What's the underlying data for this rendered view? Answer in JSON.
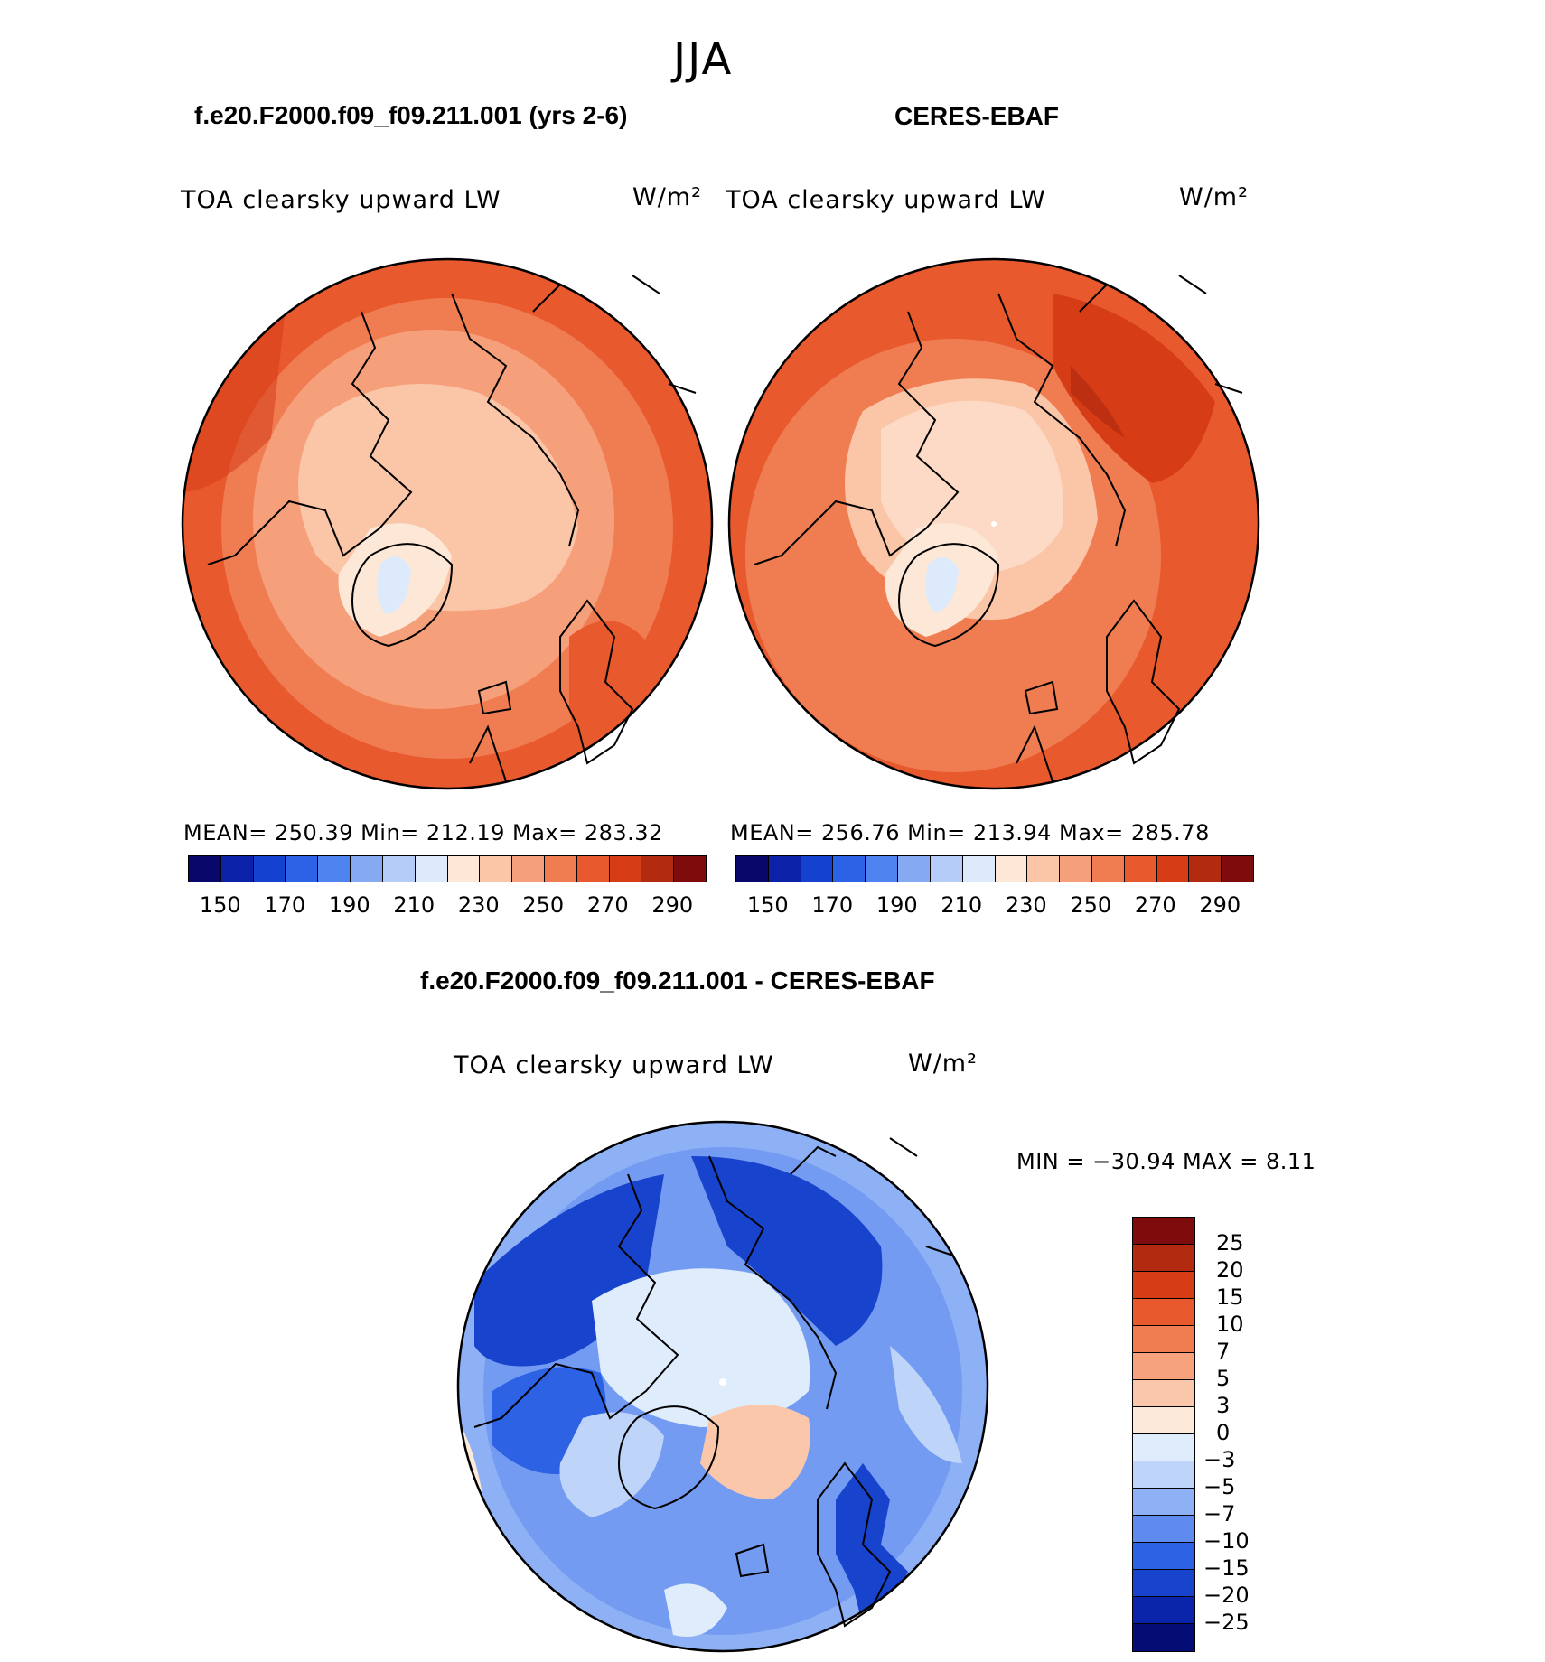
{
  "figure": {
    "season": "JJA"
  },
  "panels": {
    "model": {
      "title": "f.e20.F2000.f09_f09.211.001 (yrs 2-6)",
      "variable": "TOA clearsky upward LW",
      "units": "W/m²",
      "stats": "MEAN= 250.39   Min= 212.19   Max= 283.32"
    },
    "obs": {
      "title": "CERES-EBAF",
      "variable": "TOA clearsky upward LW",
      "units": "W/m²",
      "stats": "MEAN= 256.76   Min= 213.94   Max= 285.78"
    },
    "diff": {
      "title": "f.e20.F2000.f09_f09.211.001 - CERES-EBAF",
      "variable": "TOA clearsky upward LW",
      "units": "W/m²",
      "stats": "MIN = −30.94 MAX =    8.11"
    }
  },
  "colors": {
    "abs_palette": [
      "#08086b",
      "#0b22a8",
      "#1441cf",
      "#2c62e6",
      "#4f84f0",
      "#86aaf2",
      "#b4ccf7",
      "#dceafb",
      "#fde8d8",
      "#fbc6a8",
      "#f6a07b",
      "#f07d52",
      "#e8592e",
      "#d63d17",
      "#b22a0f",
      "#7e0c0c"
    ],
    "diff_palette": [
      "#030d73",
      "#0a25aa",
      "#1743cd",
      "#2d62e5",
      "#5f8bef",
      "#8eb0f5",
      "#bfd4f9",
      "#dfecfc",
      "#fde9d9",
      "#fbc7ab",
      "#f6a27d",
      "#f07d52",
      "#e8592e",
      "#d63d17",
      "#b22a0f",
      "#7e0c0c"
    ],
    "ocean_warm": "#f07d52",
    "map_border": "#000000"
  },
  "chart_data": {
    "type": "heatmap",
    "projection": "north polar stereographic",
    "abs_colorbar": {
      "levels": [
        150,
        160,
        170,
        180,
        190,
        200,
        210,
        220,
        230,
        240,
        250,
        260,
        270,
        280,
        290
      ],
      "tick_labels": [
        "150",
        "170",
        "190",
        "210",
        "230",
        "250",
        "270",
        "290"
      ]
    },
    "diff_colorbar": {
      "levels": [
        -25,
        -20,
        -15,
        -10,
        -7,
        -5,
        -3,
        0,
        3,
        5,
        7,
        10,
        15,
        20,
        25
      ],
      "tick_labels": [
        "25",
        "20",
        "15",
        "10",
        "7",
        "5",
        "3",
        "0",
        "−3",
        "−5",
        "−7",
        "−10",
        "−15",
        "−20",
        "−25"
      ]
    },
    "model": {
      "mean": 250.39,
      "min": 212.19,
      "max": 283.32
    },
    "obs": {
      "mean": 256.76,
      "min": 213.94,
      "max": 285.78
    },
    "diff": {
      "min": -30.94,
      "max": 8.11
    }
  }
}
